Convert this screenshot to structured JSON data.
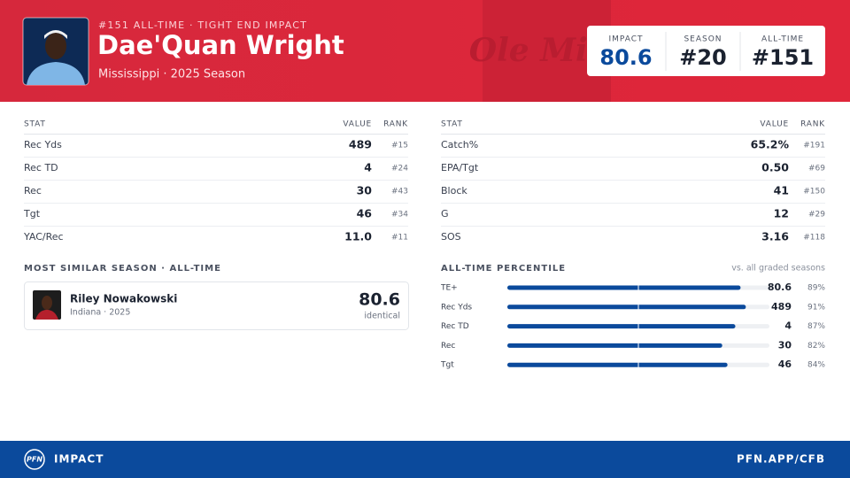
{
  "header": {
    "eyebrow": "#151 ALL-TIME · TIGHT END IMPACT",
    "name": "Dae'Quan Wright",
    "subtitle": "Mississippi · 2025 Season",
    "watermark": "Ole Miss"
  },
  "summary": [
    {
      "label": "IMPACT",
      "value": "80.6"
    },
    {
      "label": "SEASON",
      "value": "#20"
    },
    {
      "label": "ALL-TIME",
      "value": "#151"
    }
  ],
  "tables": [
    {
      "columns": [
        "STAT",
        "VALUE",
        "RANK"
      ],
      "rows": [
        [
          "Rec Yds",
          "489",
          "#15"
        ],
        [
          "Rec TD",
          "4",
          "#24"
        ],
        [
          "Rec",
          "30",
          "#43"
        ],
        [
          "Tgt",
          "46",
          "#34"
        ],
        [
          "YAC/Rec",
          "11.0",
          "#11"
        ]
      ]
    },
    {
      "columns": [
        "STAT",
        "VALUE",
        "RANK"
      ],
      "rows": [
        [
          "Catch%",
          "65.2%",
          "#191"
        ],
        [
          "EPA/Tgt",
          "0.50",
          "#69"
        ],
        [
          "Block",
          "41",
          "#150"
        ],
        [
          "G",
          "12",
          "#29"
        ],
        [
          "SOS",
          "3.16",
          "#118"
        ]
      ]
    }
  ],
  "similar": {
    "heading": "MOST SIMILAR SEASON · ALL-TIME",
    "name": "Riley Nowakowski",
    "detail": "Indiana · 2025",
    "score": "80.6",
    "note": "identical"
  },
  "percentile": {
    "heading": "ALL-TIME PERCENTILE",
    "note": "vs. all graded seasons",
    "rows": [
      {
        "stat": "TE+",
        "value": "80.6",
        "percentile": 89,
        "percentile_label": "89%"
      },
      {
        "stat": "Rec Yds",
        "value": "489",
        "percentile": 91,
        "percentile_label": "91%"
      },
      {
        "stat": "Rec TD",
        "value": "4",
        "percentile": 87,
        "percentile_label": "87%"
      },
      {
        "stat": "Rec",
        "value": "30",
        "percentile": 82,
        "percentile_label": "82%"
      },
      {
        "stat": "Tgt",
        "value": "46",
        "percentile": 84,
        "percentile_label": "84%"
      }
    ]
  },
  "footer": {
    "logo": "PFN",
    "brand": "IMPACT",
    "url": "PFN.APP/CFB"
  }
}
